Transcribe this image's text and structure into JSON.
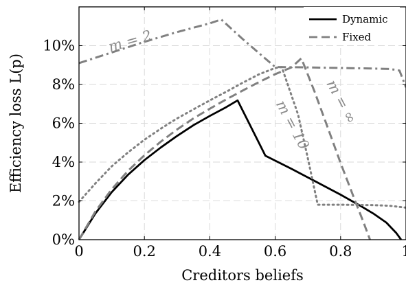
{
  "chart_data": {
    "type": "line",
    "xlabel": "Creditors beliefs",
    "ylabel": "Efficiency loss L(p)",
    "xlim": [
      0,
      1
    ],
    "ylim": [
      0,
      0.12
    ],
    "grid": true,
    "legend_position": "top-right",
    "x_ticks": [
      {
        "value": 0,
        "label": "0"
      },
      {
        "value": 0.2,
        "label": "0.2"
      },
      {
        "value": 0.4,
        "label": "0.4"
      },
      {
        "value": 0.6,
        "label": "0.6"
      },
      {
        "value": 0.8,
        "label": "0.8"
      },
      {
        "value": 1,
        "label": "1"
      }
    ],
    "y_ticks": [
      {
        "value": 0,
        "label": "0%"
      },
      {
        "value": 0.02,
        "label": "2%"
      },
      {
        "value": 0.04,
        "label": "4%"
      },
      {
        "value": 0.06,
        "label": "6%"
      },
      {
        "value": 0.08,
        "label": "8%"
      },
      {
        "value": 0.1,
        "label": "10%"
      }
    ],
    "series": [
      {
        "name": "Dynamic",
        "style": "solid",
        "color": "#000000",
        "points": [
          [
            0,
            0
          ],
          [
            0.05,
            0.0135
          ],
          [
            0.1,
            0.0245
          ],
          [
            0.15,
            0.0335
          ],
          [
            0.2,
            0.041
          ],
          [
            0.25,
            0.0475
          ],
          [
            0.3,
            0.0535
          ],
          [
            0.35,
            0.059
          ],
          [
            0.4,
            0.0638
          ],
          [
            0.45,
            0.0683
          ],
          [
            0.485,
            0.0718
          ],
          [
            0.57,
            0.0433
          ],
          [
            0.65,
            0.0365
          ],
          [
            0.72,
            0.0303
          ],
          [
            0.8,
            0.0232
          ],
          [
            0.86,
            0.0175
          ],
          [
            0.9,
            0.0135
          ],
          [
            0.94,
            0.0088
          ],
          [
            0.97,
            0.0035
          ],
          [
            0.985,
            0
          ]
        ]
      },
      {
        "name": "Fixed",
        "style": "dashed",
        "color": "#808080",
        "points": [
          [
            0,
            0
          ],
          [
            0.05,
            0.0145
          ],
          [
            0.1,
            0.026
          ],
          [
            0.15,
            0.0355
          ],
          [
            0.2,
            0.0435
          ],
          [
            0.25,
            0.0505
          ],
          [
            0.3,
            0.0568
          ],
          [
            0.35,
            0.0625
          ],
          [
            0.4,
            0.0675
          ],
          [
            0.45,
            0.0723
          ],
          [
            0.5,
            0.0768
          ],
          [
            0.55,
            0.0812
          ],
          [
            0.6,
            0.0853
          ],
          [
            0.65,
            0.0888
          ],
          [
            0.68,
            0.0935
          ],
          [
            0.72,
            0.0765
          ],
          [
            0.76,
            0.058
          ],
          [
            0.8,
            0.0395
          ],
          [
            0.84,
            0.022
          ],
          [
            0.87,
            0.009
          ],
          [
            0.89,
            0
          ]
        ]
      },
      {
        "name": "",
        "style": "dotted",
        "color": "#808080",
        "points": [
          [
            0,
            0.0195
          ],
          [
            0.05,
            0.029
          ],
          [
            0.1,
            0.0378
          ],
          [
            0.15,
            0.045
          ],
          [
            0.2,
            0.0515
          ],
          [
            0.25,
            0.0572
          ],
          [
            0.3,
            0.0625
          ],
          [
            0.35,
            0.0672
          ],
          [
            0.4,
            0.0718
          ],
          [
            0.45,
            0.0762
          ],
          [
            0.5,
            0.0808
          ],
          [
            0.55,
            0.0852
          ],
          [
            0.6,
            0.0885
          ],
          [
            0.62,
            0.089
          ],
          [
            0.67,
            0.0645
          ],
          [
            0.7,
            0.0418
          ],
          [
            0.73,
            0.018
          ],
          [
            0.8,
            0.018
          ],
          [
            0.9,
            0.0178
          ],
          [
            0.95,
            0.0175
          ],
          [
            1,
            0.0165
          ]
        ]
      },
      {
        "name": "",
        "style": "dashdot",
        "color": "#808080",
        "points": [
          [
            0,
            0.091
          ],
          [
            0.1,
            0.0965
          ],
          [
            0.2,
            0.102
          ],
          [
            0.3,
            0.107
          ],
          [
            0.4,
            0.1115
          ],
          [
            0.435,
            0.1135
          ],
          [
            0.5,
            0.1035
          ],
          [
            0.55,
            0.0962
          ],
          [
            0.6,
            0.089
          ],
          [
            0.7,
            0.0888
          ],
          [
            0.8,
            0.0885
          ],
          [
            0.9,
            0.0882
          ],
          [
            0.95,
            0.088
          ],
          [
            0.98,
            0.0872
          ],
          [
            1,
            0.0785
          ]
        ]
      }
    ],
    "annotations": [
      {
        "text": "m = 2",
        "x": 0.16,
        "y": 0.1,
        "angle": -16
      },
      {
        "text": "m = 10",
        "x": 0.64,
        "y": 0.058,
        "angle": 62
      },
      {
        "text": "m = ∞",
        "x": 0.79,
        "y": 0.07,
        "angle": 62
      }
    ]
  }
}
